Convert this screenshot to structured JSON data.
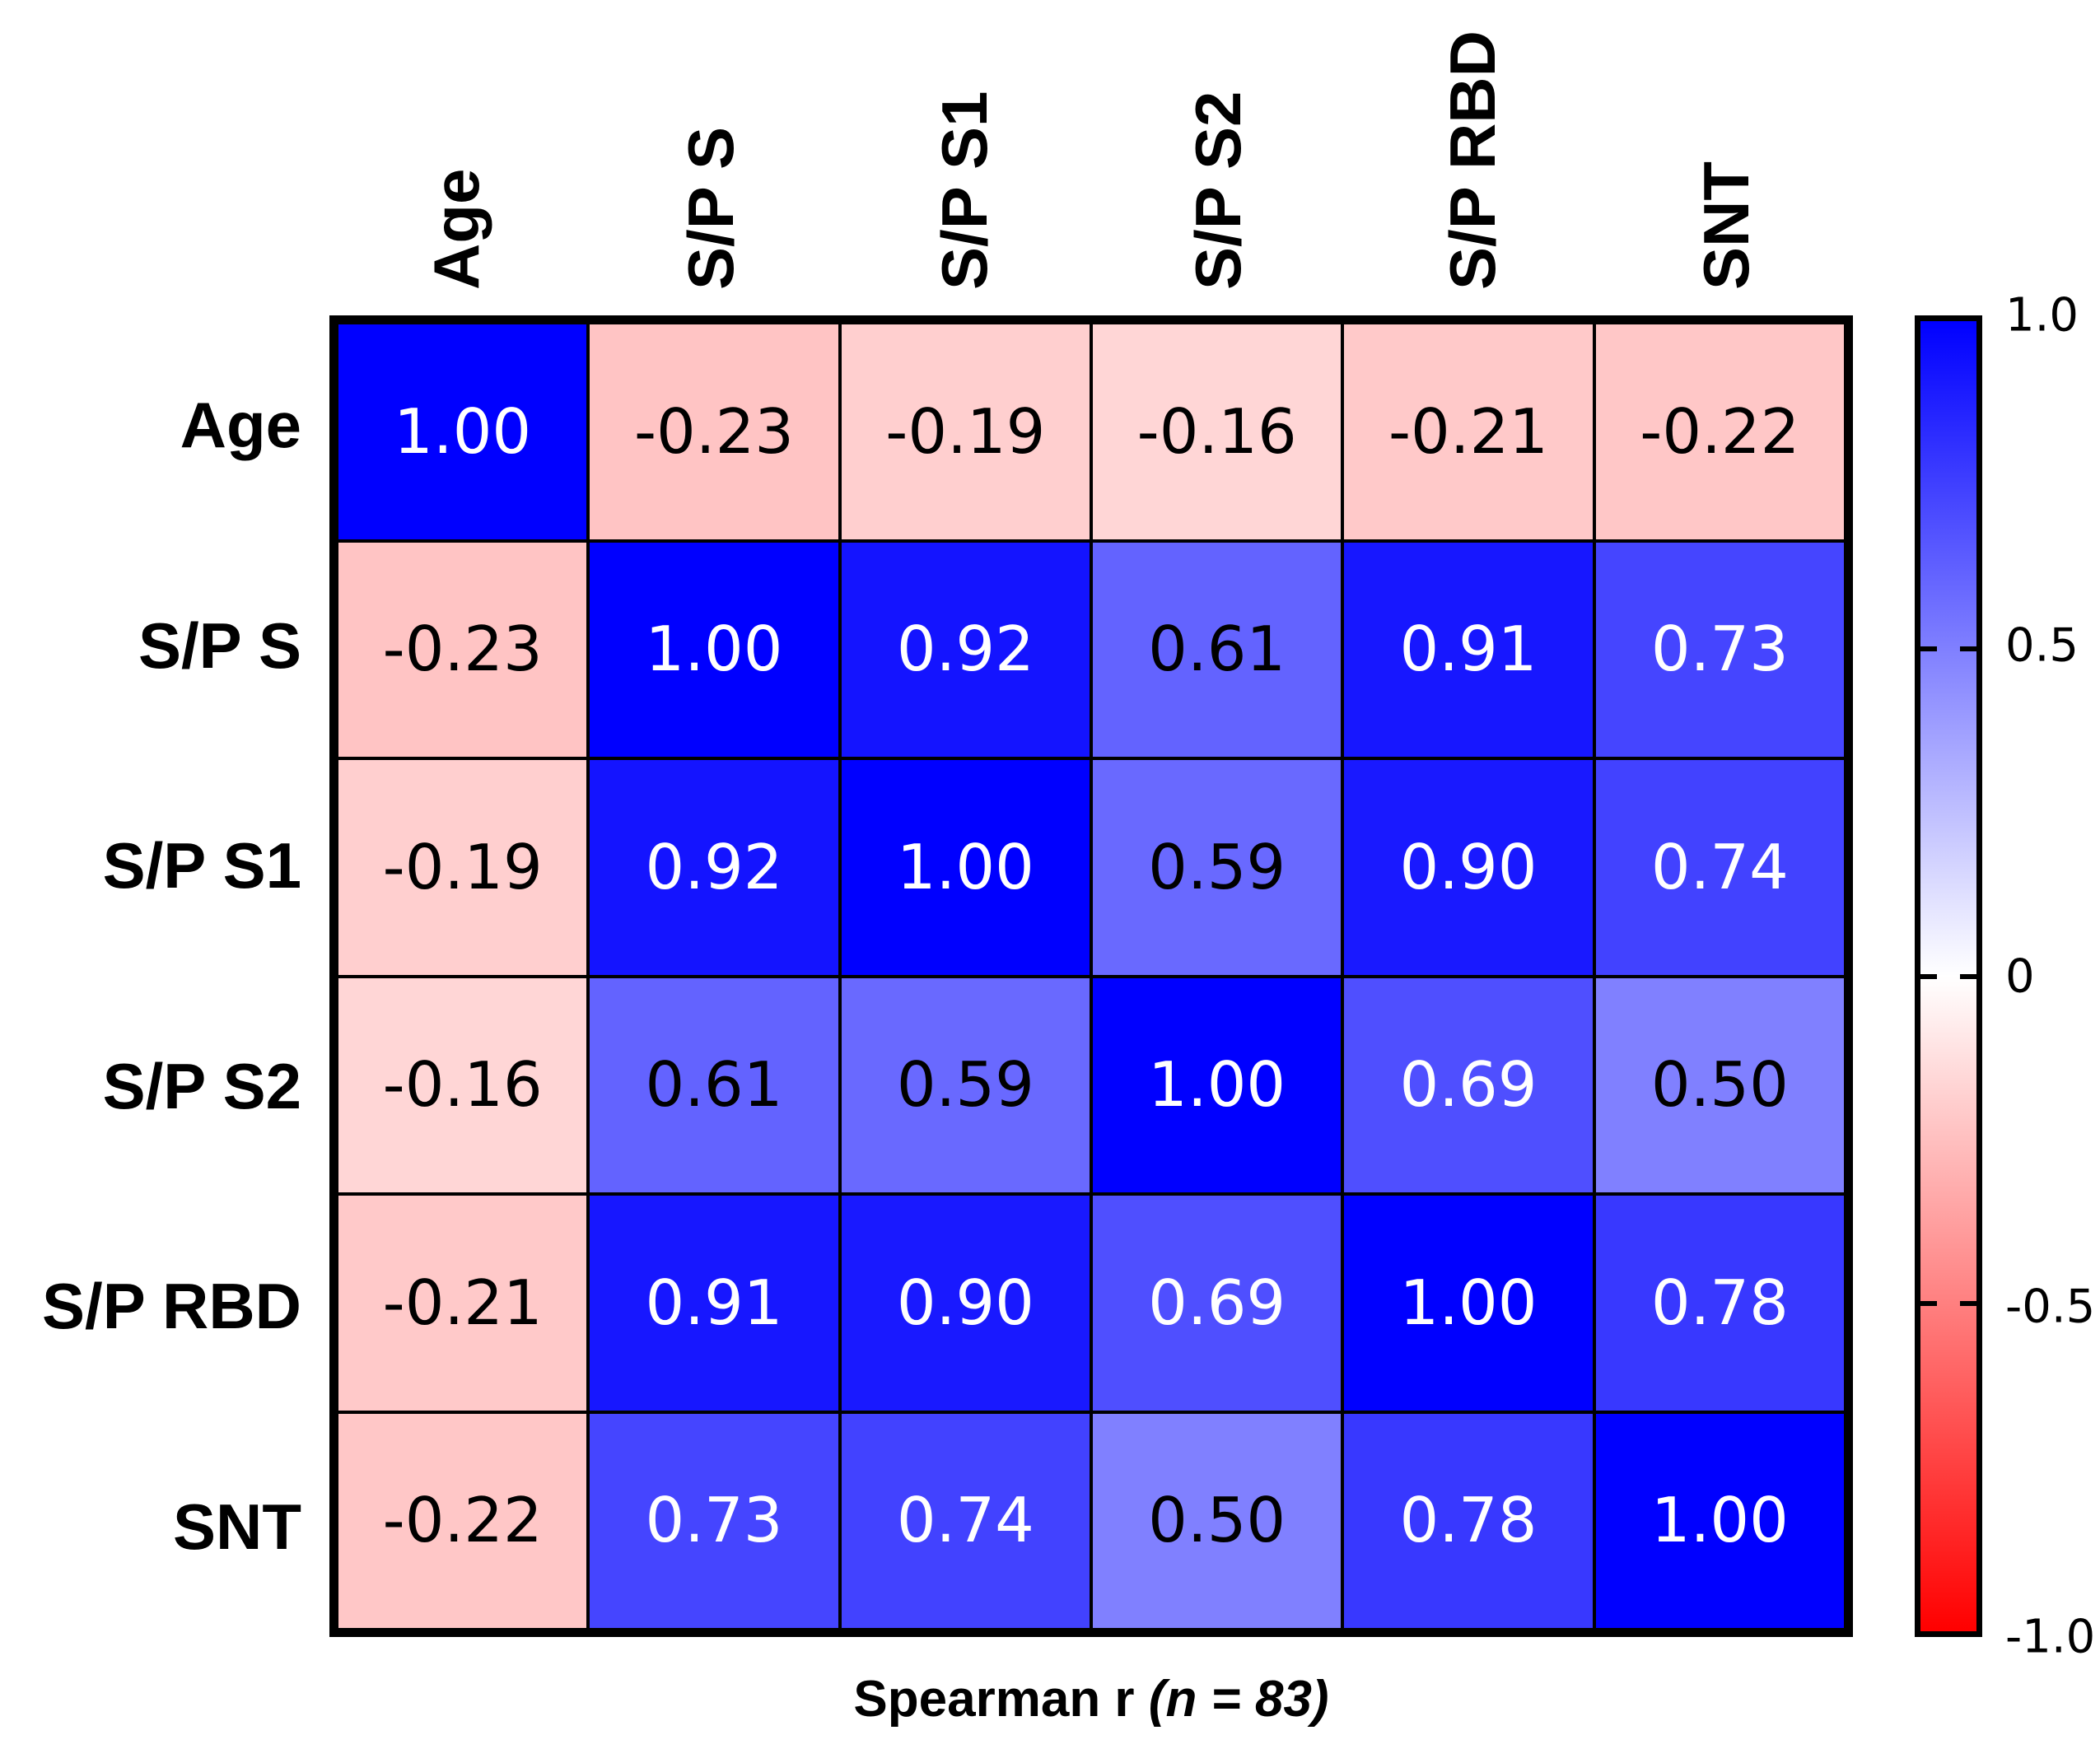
{
  "chart_data": {
    "type": "heatmap",
    "labels": [
      "Age",
      "S/P S",
      "S/P S1",
      "S/P S2",
      "S/P RBD",
      "SNT"
    ],
    "matrix": [
      [
        1.0,
        -0.23,
        -0.19,
        -0.16,
        -0.21,
        -0.22
      ],
      [
        -0.23,
        1.0,
        0.92,
        0.61,
        0.91,
        0.73
      ],
      [
        -0.19,
        0.92,
        1.0,
        0.59,
        0.9,
        0.74
      ],
      [
        -0.16,
        0.61,
        0.59,
        1.0,
        0.69,
        0.5
      ],
      [
        -0.21,
        0.91,
        0.9,
        0.69,
        1.0,
        0.78
      ],
      [
        -0.22,
        0.73,
        0.74,
        0.5,
        0.78,
        1.0
      ]
    ],
    "cells_text": [
      [
        "1.00",
        "-0.23",
        "-0.19",
        "-0.16",
        "-0.21",
        "-0.22"
      ],
      [
        "-0.23",
        "1.00",
        "0.92",
        "0.61",
        "0.91",
        "0.73"
      ],
      [
        "-0.19",
        "0.92",
        "1.00",
        "0.59",
        "0.90",
        "0.74"
      ],
      [
        "-0.16",
        "0.61",
        "0.59",
        "1.00",
        "0.69",
        "0.50"
      ],
      [
        "-0.21",
        "0.91",
        "0.90",
        "0.69",
        "1.00",
        "0.78"
      ],
      [
        "-0.22",
        "0.73",
        "0.74",
        "0.50",
        "0.78",
        "1.00"
      ]
    ],
    "caption_plain": "Spearman r ",
    "caption_italic": "(n = 83)",
    "colorbar": {
      "range": [
        -1.0,
        1.0
      ],
      "ticks": [
        {
          "label": "1.0",
          "value": 1.0
        },
        {
          "label": "0.5",
          "value": 0.5
        },
        {
          "label": "0",
          "value": 0.0
        },
        {
          "label": "-0.5",
          "value": -0.5
        },
        {
          "label": "-1.0",
          "value": -1.0
        }
      ],
      "color_positive": "#0000ff",
      "color_zero": "#ffffff",
      "color_negative": "#ff0000"
    },
    "cell_text_colors": {
      "light": "#ffffff",
      "dark": "#000000",
      "white_text_threshold": 0.66
    },
    "legend_position": "right",
    "grid": "on"
  }
}
